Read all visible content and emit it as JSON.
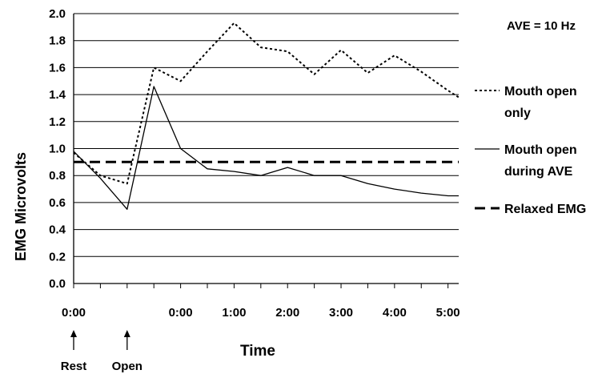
{
  "chart_data": {
    "type": "line",
    "annotation": "AVE = 10 Hz",
    "xlabel": "Time",
    "ylabel": "EMG Microvolts",
    "ylim": [
      0,
      2
    ],
    "yticks": [
      "0.0",
      "0.2",
      "0.4",
      "0.6",
      "0.8",
      "1.0",
      "1.2",
      "1.4",
      "1.6",
      "1.8",
      "2.0"
    ],
    "grid": true,
    "legend_position": "right",
    "x_categories": [
      "0:00",
      "0:00",
      "1:00",
      "2:00",
      "3:00",
      "4:00",
      "5:00"
    ],
    "x_markers": [
      {
        "label": "Rest",
        "at": 0
      },
      {
        "label": "Open",
        "at": 1
      }
    ],
    "x_tick_positions": [
      0,
      2.0,
      3.0,
      4.0,
      5.0,
      6.0,
      7.0
    ],
    "x_max": 7.2,
    "series": [
      {
        "name": "Mouth open only",
        "style": "dotted",
        "x": [
          0,
          0.5,
          1.0,
          1.5,
          2.0,
          2.5,
          3.0,
          3.5,
          4.0,
          4.5,
          5.0,
          5.5,
          6.0,
          6.5,
          7.0,
          7.2
        ],
        "y": [
          0.97,
          0.8,
          0.74,
          1.6,
          1.5,
          1.72,
          1.93,
          1.75,
          1.72,
          1.55,
          1.73,
          1.56,
          1.69,
          1.57,
          1.43,
          1.38
        ]
      },
      {
        "name": "Mouth open during AVE",
        "style": "solid",
        "x": [
          0,
          0.5,
          1.0,
          1.5,
          2.0,
          2.5,
          3.0,
          3.5,
          4.0,
          4.5,
          5.0,
          5.5,
          6.0,
          6.5,
          7.0,
          7.2
        ],
        "y": [
          0.98,
          0.78,
          0.55,
          1.46,
          1.0,
          0.85,
          0.83,
          0.8,
          0.86,
          0.8,
          0.8,
          0.74,
          0.7,
          0.67,
          0.65,
          0.65
        ]
      },
      {
        "name": "Relaxed EMG",
        "style": "dashed",
        "x": [
          0,
          7.2
        ],
        "y": [
          0.9,
          0.9
        ]
      }
    ],
    "legend": [
      {
        "lines": [
          "Mouth open",
          "only"
        ],
        "style": "dotted"
      },
      {
        "lines": [
          "Mouth open",
          "during AVE"
        ],
        "style": "solid"
      },
      {
        "lines": [
          "Relaxed EMG"
        ],
        "style": "dashed"
      }
    ]
  }
}
